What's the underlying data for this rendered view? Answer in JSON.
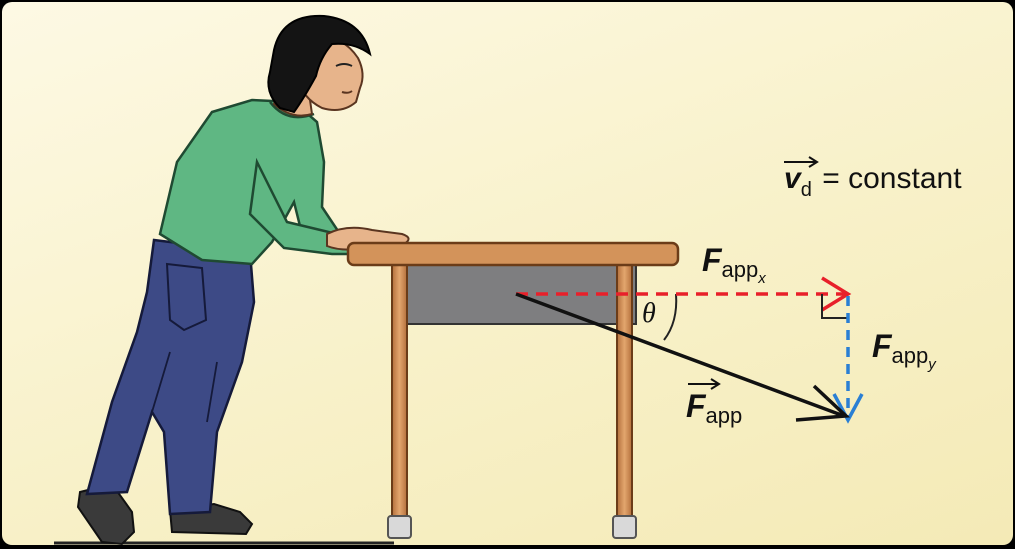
{
  "labels": {
    "vd_symbol": "v",
    "vd_subscript": "d",
    "vd_equation": "= constant",
    "fappx_main": "F",
    "fappx_sub": "app",
    "fappx_subsub": "x",
    "fappy_main": "F",
    "fappy_sub": "app",
    "fappy_subsub": "y",
    "fapp_main": "F",
    "fapp_sub": "app",
    "theta": "θ"
  },
  "colors": {
    "shirt": "#5fb783",
    "pants": "#3d4a86",
    "table_wood": "#d3935a",
    "table_apron": "#7e7e80",
    "fapp_vector": "#111111",
    "fappx_vector": "#e8202a",
    "fappy_vector": "#2a7fd4"
  }
}
